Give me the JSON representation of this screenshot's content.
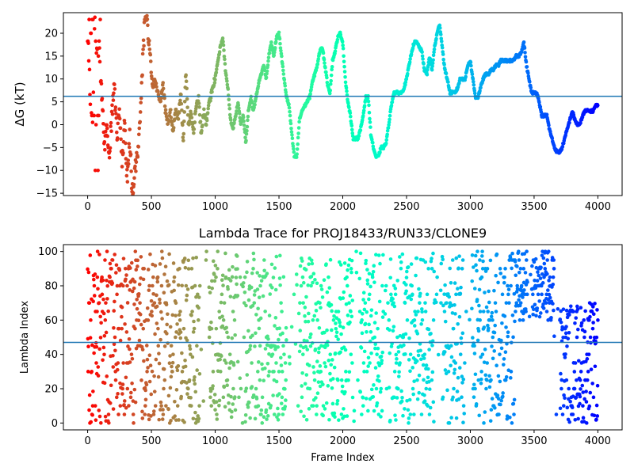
{
  "chart_data": [
    {
      "type": "scatter",
      "title": "",
      "xlabel": "",
      "ylabel": "ΔG (kT)",
      "xlim": [
        -190,
        4190
      ],
      "ylim": [
        -15.5,
        24.5
      ],
      "xticks": [
        0,
        500,
        1000,
        1500,
        2000,
        2500,
        3000,
        3500,
        4000
      ],
      "yticks": [
        -15,
        -10,
        -5,
        0,
        5,
        10,
        15,
        20
      ],
      "hline": 6.2,
      "hline_color": "#1f77b4",
      "colormap": "rainbow (red at frame 0 → violet at frame 4000)",
      "grid": false,
      "trace_keypoints": [
        [
          0,
          20
        ],
        [
          10,
          15
        ],
        [
          25,
          2
        ],
        [
          40,
          0
        ],
        [
          55,
          23
        ],
        [
          70,
          15
        ],
        [
          85,
          22
        ],
        [
          100,
          12
        ],
        [
          115,
          5
        ],
        [
          130,
          -5
        ],
        [
          150,
          0
        ],
        [
          170,
          -6
        ],
        [
          190,
          2
        ],
        [
          210,
          8
        ],
        [
          230,
          -3
        ],
        [
          250,
          4
        ],
        [
          270,
          -8
        ],
        [
          290,
          0
        ],
        [
          310,
          -12
        ],
        [
          330,
          -3
        ],
        [
          350,
          -15
        ],
        [
          370,
          -10
        ],
        [
          390,
          -6
        ],
        [
          410,
          0
        ],
        [
          430,
          13
        ],
        [
          450,
          24
        ],
        [
          470,
          22
        ],
        [
          490,
          14
        ],
        [
          510,
          8
        ],
        [
          530,
          10
        ],
        [
          550,
          7
        ],
        [
          570,
          5
        ],
        [
          590,
          9
        ],
        [
          610,
          3
        ],
        [
          630,
          0
        ],
        [
          650,
          3
        ],
        [
          670,
          -2
        ],
        [
          690,
          4
        ],
        [
          710,
          1
        ],
        [
          730,
          7
        ],
        [
          750,
          -4
        ],
        [
          770,
          12
        ],
        [
          790,
          0
        ],
        [
          810,
          3
        ],
        [
          830,
          -2
        ],
        [
          850,
          4
        ],
        [
          870,
          6
        ],
        [
          890,
          -2
        ],
        [
          910,
          3
        ],
        [
          930,
          0
        ],
        [
          950,
          4
        ],
        [
          970,
          7
        ],
        [
          990,
          9
        ],
        [
          1010,
          12
        ],
        [
          1040,
          17
        ],
        [
          1060,
          19
        ],
        [
          1080,
          12
        ],
        [
          1100,
          8
        ],
        [
          1120,
          1
        ],
        [
          1140,
          -1
        ],
        [
          1160,
          2
        ],
        [
          1180,
          5
        ],
        [
          1200,
          0
        ],
        [
          1220,
          2
        ],
        [
          1240,
          -4
        ],
        [
          1260,
          3
        ],
        [
          1280,
          6
        ],
        [
          1300,
          3
        ],
        [
          1320,
          6
        ],
        [
          1340,
          9
        ],
        [
          1360,
          11
        ],
        [
          1380,
          13
        ],
        [
          1400,
          10
        ],
        [
          1420,
          15
        ],
        [
          1440,
          18
        ],
        [
          1460,
          15
        ],
        [
          1480,
          19
        ],
        [
          1500,
          20
        ],
        [
          1520,
          15
        ],
        [
          1540,
          10
        ],
        [
          1560,
          6
        ],
        [
          1580,
          4
        ],
        [
          1600,
          -2
        ],
        [
          1620,
          -7
        ],
        [
          1640,
          -7
        ],
        [
          1660,
          1
        ],
        [
          1680,
          3
        ],
        [
          1700,
          4
        ],
        [
          1720,
          5
        ],
        [
          1740,
          6
        ],
        [
          1760,
          9
        ],
        [
          1780,
          11
        ],
        [
          1800,
          13
        ],
        [
          1820,
          16
        ],
        [
          1840,
          17
        ],
        [
          1860,
          13
        ],
        [
          1880,
          9
        ],
        [
          1900,
          7
        ],
        [
          1920,
          14
        ],
        [
          1940,
          16
        ],
        [
          1960,
          19
        ],
        [
          1980,
          20
        ],
        [
          2000,
          18
        ],
        [
          2020,
          10
        ],
        [
          2040,
          5
        ],
        [
          2060,
          2
        ],
        [
          2080,
          -3
        ],
        [
          2100,
          -3
        ],
        [
          2120,
          -3
        ],
        [
          2140,
          -1
        ],
        [
          2160,
          2
        ],
        [
          2180,
          6
        ],
        [
          2200,
          6
        ],
        [
          2220,
          -2
        ],
        [
          2240,
          -5
        ],
        [
          2260,
          -7
        ],
        [
          2280,
          -7
        ],
        [
          2300,
          -5
        ],
        [
          2320,
          -5
        ],
        [
          2340,
          -4
        ],
        [
          2360,
          0
        ],
        [
          2380,
          4
        ],
        [
          2400,
          7
        ],
        [
          2420,
          7
        ],
        [
          2440,
          7
        ],
        [
          2460,
          7
        ],
        [
          2480,
          8
        ],
        [
          2500,
          10
        ],
        [
          2520,
          13
        ],
        [
          2540,
          16
        ],
        [
          2560,
          18
        ],
        [
          2580,
          18
        ],
        [
          2600,
          17
        ],
        [
          2620,
          16
        ],
        [
          2640,
          12
        ],
        [
          2660,
          11
        ],
        [
          2680,
          15
        ],
        [
          2700,
          12
        ],
        [
          2720,
          17
        ],
        [
          2740,
          20
        ],
        [
          2760,
          22
        ],
        [
          2780,
          17
        ],
        [
          2800,
          12
        ],
        [
          2820,
          10
        ],
        [
          2840,
          7
        ],
        [
          2860,
          7
        ],
        [
          2880,
          7
        ],
        [
          2900,
          8
        ],
        [
          2920,
          10
        ],
        [
          2940,
          10
        ],
        [
          2960,
          10
        ],
        [
          2980,
          13
        ],
        [
          3000,
          14
        ],
        [
          3020,
          10
        ],
        [
          3040,
          6
        ],
        [
          3060,
          6
        ],
        [
          3080,
          8
        ],
        [
          3100,
          10
        ],
        [
          3120,
          11
        ],
        [
          3140,
          11
        ],
        [
          3160,
          12
        ],
        [
          3180,
          12
        ],
        [
          3200,
          13
        ],
        [
          3220,
          13
        ],
        [
          3240,
          14
        ],
        [
          3260,
          14
        ],
        [
          3280,
          14
        ],
        [
          3300,
          14
        ],
        [
          3320,
          14
        ],
        [
          3340,
          14
        ],
        [
          3360,
          15
        ],
        [
          3380,
          15
        ],
        [
          3400,
          16
        ],
        [
          3420,
          18
        ],
        [
          3440,
          13
        ],
        [
          3460,
          10
        ],
        [
          3480,
          7
        ],
        [
          3500,
          7
        ],
        [
          3520,
          7
        ],
        [
          3540,
          5
        ],
        [
          3560,
          2
        ],
        [
          3580,
          2
        ],
        [
          3600,
          2
        ],
        [
          3620,
          -1
        ],
        [
          3640,
          -3
        ],
        [
          3660,
          -5
        ],
        [
          3680,
          -6
        ],
        [
          3700,
          -6
        ],
        [
          3720,
          -5
        ],
        [
          3740,
          -3
        ],
        [
          3760,
          -1
        ],
        [
          3780,
          1
        ],
        [
          3800,
          3
        ],
        [
          3820,
          1
        ],
        [
          3840,
          0
        ],
        [
          3860,
          0
        ],
        [
          3880,
          2
        ],
        [
          3900,
          3
        ],
        [
          3920,
          3
        ],
        [
          3940,
          3
        ],
        [
          3960,
          3
        ],
        [
          3980,
          4
        ],
        [
          4000,
          4.5
        ]
      ]
    },
    {
      "type": "scatter",
      "title": "Lambda Trace for PROJ18433/RUN33/CLONE9",
      "xlabel": "Frame Index",
      "ylabel": "Lambda Index",
      "xlim": [
        -190,
        4190
      ],
      "ylim": [
        -4,
        104
      ],
      "xticks": [
        0,
        500,
        1000,
        1500,
        2000,
        2500,
        3000,
        3500,
        4000
      ],
      "yticks": [
        0,
        20,
        40,
        60,
        80,
        100
      ],
      "hline": 47,
      "hline_color": "#1f77b4",
      "colormap": "rainbow (red at frame 0 → violet at frame 4000)",
      "grid": false,
      "frame_count": 4000,
      "lambda_range": [
        0,
        99
      ]
    }
  ]
}
